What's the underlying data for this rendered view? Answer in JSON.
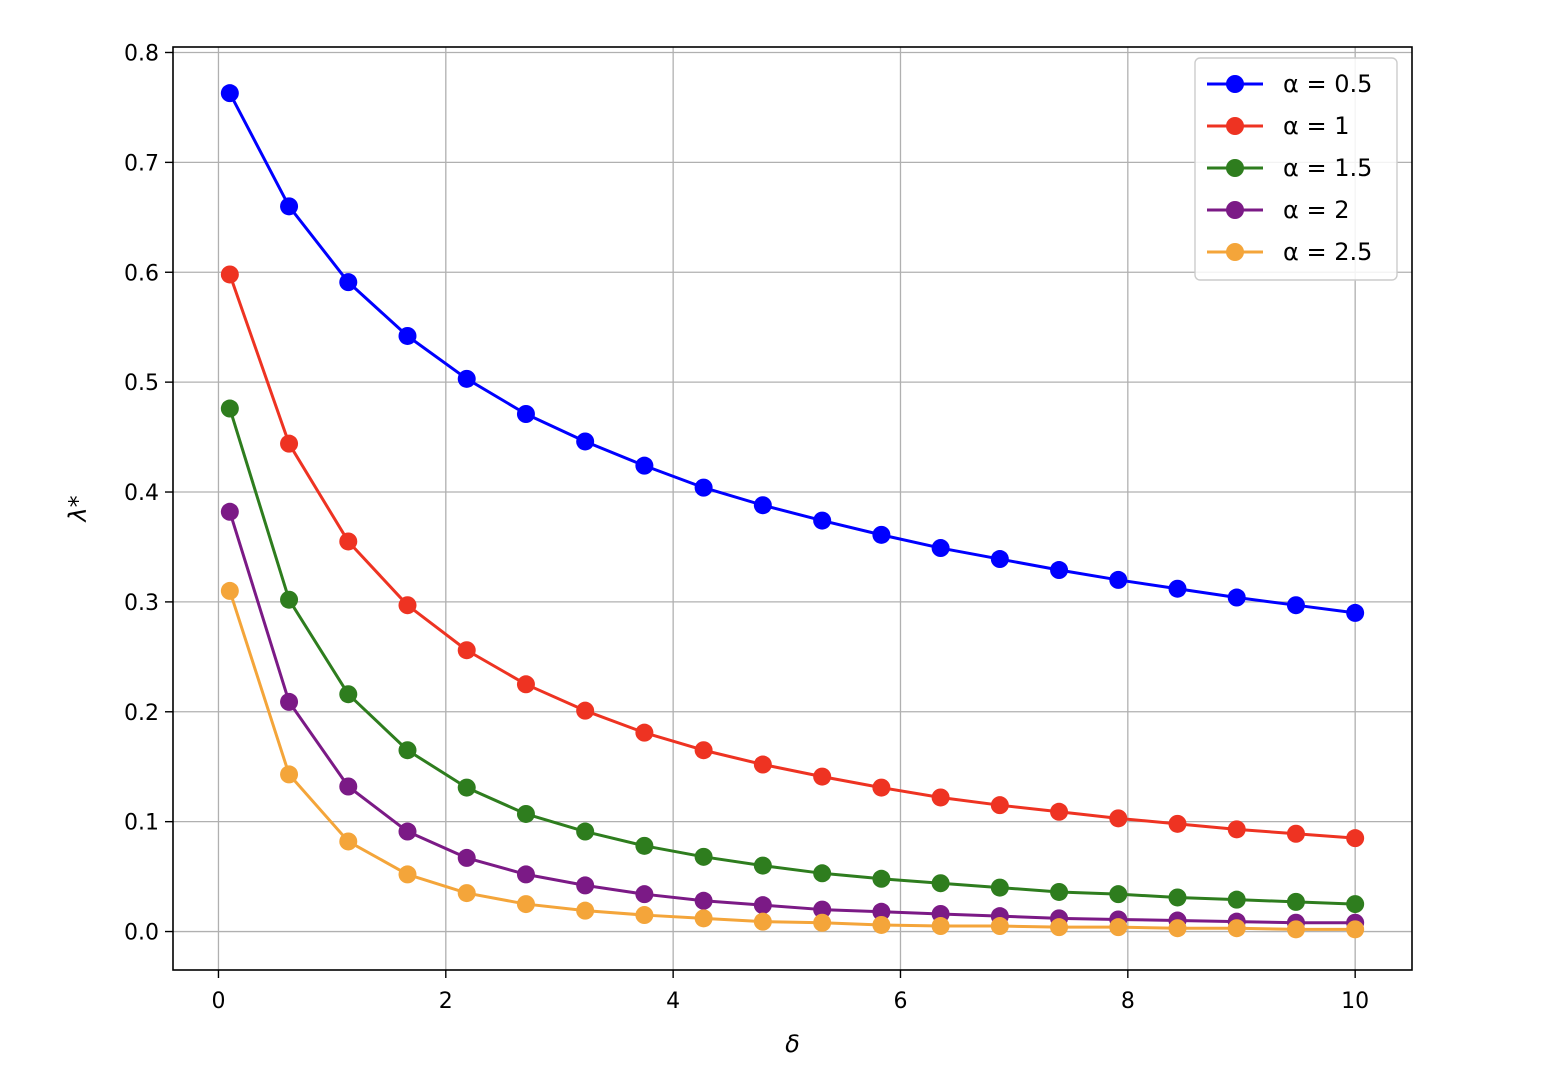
{
  "chart_data": {
    "type": "line",
    "title": "",
    "xlabel": "δ",
    "ylabel": "λ*",
    "xlim": [
      -0.4,
      10.5
    ],
    "ylim": [
      -0.035,
      0.805
    ],
    "x_ticks": [
      0,
      2,
      4,
      6,
      8,
      10
    ],
    "y_ticks": [
      0.0,
      0.1,
      0.2,
      0.3,
      0.4,
      0.5,
      0.6,
      0.7,
      0.8
    ],
    "grid": true,
    "legend_position": "top-right",
    "marker": "circle",
    "x": [
      0.1,
      0.621,
      1.142,
      1.663,
      2.184,
      2.705,
      3.226,
      3.747,
      4.268,
      4.789,
      5.311,
      5.832,
      6.353,
      6.874,
      7.395,
      7.916,
      8.437,
      8.958,
      9.479,
      10.0
    ],
    "series": [
      {
        "name": "α = 0.5",
        "color": "#0000ff",
        "values": [
          0.763,
          0.66,
          0.591,
          0.542,
          0.503,
          0.471,
          0.446,
          0.424,
          0.404,
          0.388,
          0.374,
          0.361,
          0.349,
          0.339,
          0.329,
          0.32,
          0.312,
          0.304,
          0.297,
          0.29
        ]
      },
      {
        "name": "α = 1",
        "color": "#ee3322",
        "values": [
          0.598,
          0.444,
          0.355,
          0.297,
          0.256,
          0.225,
          0.201,
          0.181,
          0.165,
          0.152,
          0.141,
          0.131,
          0.122,
          0.115,
          0.109,
          0.103,
          0.098,
          0.093,
          0.089,
          0.085
        ]
      },
      {
        "name": "α = 1.5",
        "color": "#2e7d1e",
        "values": [
          0.476,
          0.302,
          0.216,
          0.165,
          0.131,
          0.107,
          0.091,
          0.078,
          0.068,
          0.06,
          0.053,
          0.048,
          0.044,
          0.04,
          0.036,
          0.034,
          0.031,
          0.029,
          0.027,
          0.025
        ]
      },
      {
        "name": "α = 2",
        "color": "#7b1a86",
        "values": [
          0.382,
          0.209,
          0.132,
          0.091,
          0.067,
          0.052,
          0.042,
          0.034,
          0.028,
          0.024,
          0.02,
          0.018,
          0.016,
          0.014,
          0.012,
          0.011,
          0.01,
          0.009,
          0.008,
          0.008
        ]
      },
      {
        "name": "α = 2.5",
        "color": "#f4a53a",
        "values": [
          0.31,
          0.143,
          0.082,
          0.052,
          0.035,
          0.025,
          0.019,
          0.015,
          0.012,
          0.009,
          0.008,
          0.006,
          0.005,
          0.005,
          0.004,
          0.004,
          0.003,
          0.003,
          0.002,
          0.002
        ]
      }
    ]
  }
}
